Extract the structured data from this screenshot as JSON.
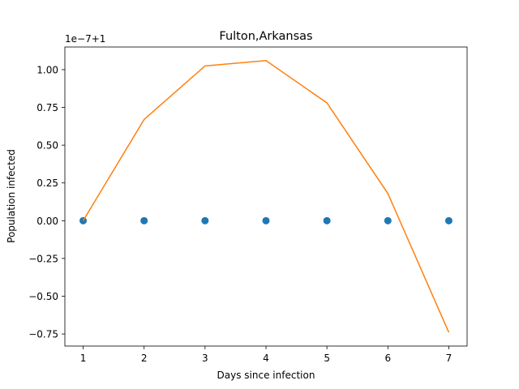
{
  "chart_data": {
    "type": "scatter",
    "title": "Fulton,Arkansas",
    "xlabel": "Days since infection",
    "ylabel": "Population infected",
    "offset_label": "1e−7+1",
    "xlim": [
      0.7,
      7.3
    ],
    "ylim": [
      -0.83,
      1.15
    ],
    "x_ticks": [
      1,
      2,
      3,
      4,
      5,
      6,
      7
    ],
    "x_tick_labels": [
      "1",
      "2",
      "3",
      "4",
      "5",
      "6",
      "7"
    ],
    "y_ticks": [
      -0.75,
      -0.5,
      -0.25,
      0.0,
      0.25,
      0.5,
      0.75,
      1.0
    ],
    "y_tick_labels": [
      "−0.75",
      "−0.50",
      "−0.25",
      "0.00",
      "0.25",
      "0.50",
      "0.75",
      "1.00"
    ],
    "grid": false,
    "series": [
      {
        "kind": "scatter",
        "color": "#1f77b4",
        "x": [
          1,
          2,
          3,
          4,
          5,
          6,
          7
        ],
        "y": [
          0,
          0,
          0,
          0,
          0,
          0,
          0
        ]
      },
      {
        "kind": "line",
        "color": "#ff7f0e",
        "x": [
          1,
          2,
          3,
          4,
          5,
          6,
          7
        ],
        "y": [
          0.0,
          0.67,
          1.025,
          1.06,
          0.78,
          0.18,
          -0.74
        ]
      }
    ]
  }
}
